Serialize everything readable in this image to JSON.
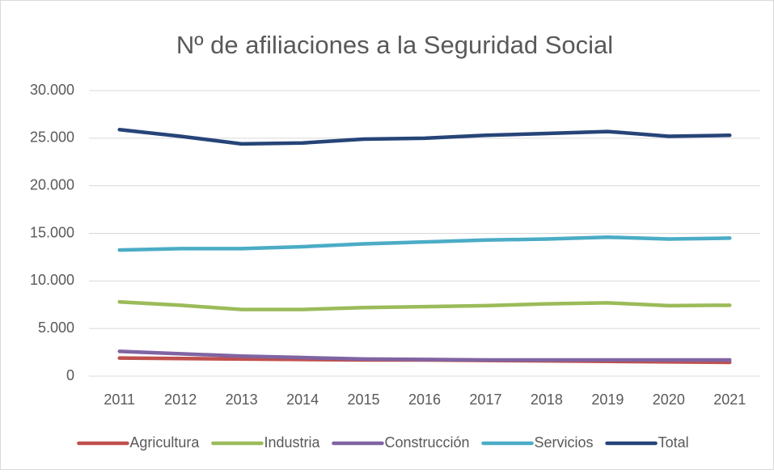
{
  "chart_data": {
    "type": "line",
    "title": "Nº de afiliaciones a la Seguridad Social",
    "categories": [
      "2011",
      "2012",
      "2013",
      "2014",
      "2015",
      "2016",
      "2017",
      "2018",
      "2019",
      "2020",
      "2021"
    ],
    "series": [
      {
        "name": "Agricultura",
        "color": "#c0504d",
        "values": [
          1900,
          1850,
          1800,
          1750,
          1700,
          1700,
          1650,
          1600,
          1550,
          1500,
          1450
        ]
      },
      {
        "name": "Industria",
        "color": "#9bbb59",
        "values": [
          7800,
          7450,
          7000,
          7000,
          7200,
          7300,
          7400,
          7600,
          7700,
          7400,
          7450
        ]
      },
      {
        "name": "Construcción",
        "color": "#8064a2",
        "values": [
          2600,
          2350,
          2100,
          1950,
          1800,
          1750,
          1700,
          1700,
          1700,
          1700,
          1700
        ]
      },
      {
        "name": "Servicios",
        "color": "#4bacc6",
        "values": [
          13250,
          13400,
          13400,
          13600,
          13900,
          14100,
          14300,
          14400,
          14600,
          14400,
          14500
        ]
      },
      {
        "name": "Total",
        "color": "#264478",
        "values": [
          25900,
          25200,
          24400,
          24500,
          24900,
          25000,
          25300,
          25500,
          25700,
          25200,
          25300
        ]
      }
    ],
    "ylim": [
      0,
      30000
    ],
    "yticks": [
      0,
      {
        "value": 5000,
        "label": "5.000"
      },
      {
        "value": 10000,
        "label": "10.000"
      },
      {
        "value": 15000,
        "label": "15.000"
      },
      {
        "value": 20000,
        "label": "20.000"
      },
      {
        "value": 25000,
        "label": "25.000"
      },
      {
        "value": 30000,
        "label": "30.000"
      }
    ],
    "grid": true,
    "legend": "bottom"
  }
}
